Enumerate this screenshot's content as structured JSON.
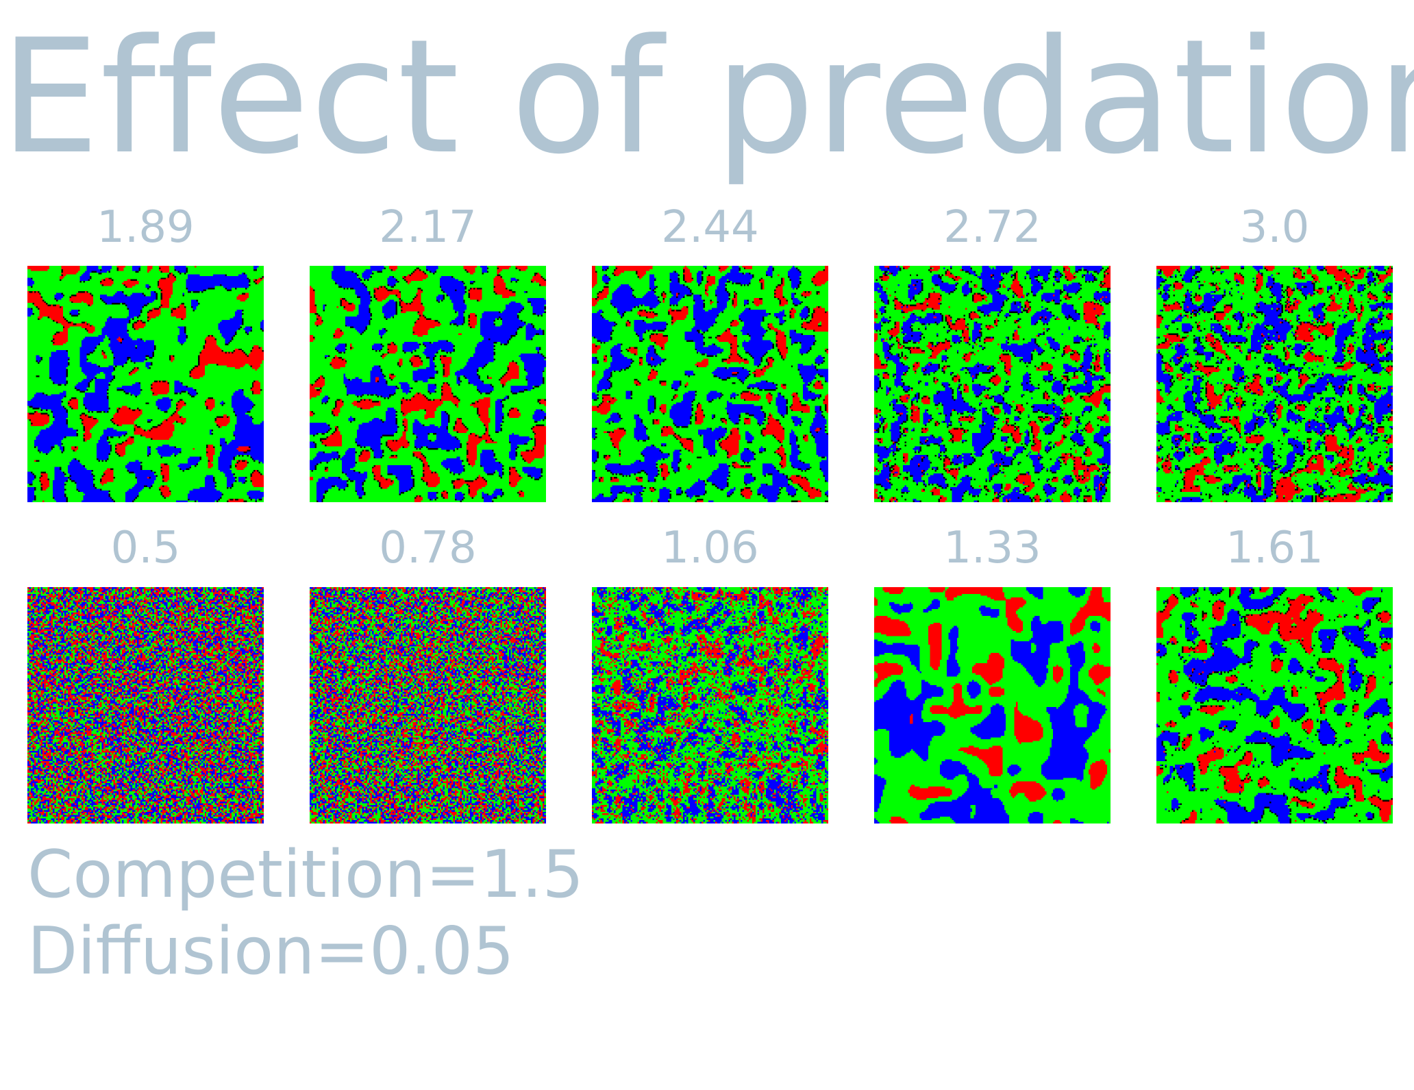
{
  "title": "Effect of predation",
  "panels_top": [
    {
      "label": "1.89",
      "predation": 1.89
    },
    {
      "label": "2.17",
      "predation": 2.17
    },
    {
      "label": "2.44",
      "predation": 2.44
    },
    {
      "label": "2.72",
      "predation": 2.72
    },
    {
      "label": "3.0",
      "predation": 3.0
    }
  ],
  "panels_bottom": [
    {
      "label": "0.5",
      "predation": 0.5
    },
    {
      "label": "0.78",
      "predation": 0.78
    },
    {
      "label": "1.06",
      "predation": 1.06
    },
    {
      "label": "1.33",
      "predation": 1.33
    },
    {
      "label": "1.61",
      "predation": 1.61
    }
  ],
  "params": {
    "competition": "Competition=1.5",
    "diffusion": "Diffusion=0.05"
  },
  "colors": {
    "text": "#b0c4d2",
    "species": [
      "#ff0000",
      "#00ff00",
      "#0000ff"
    ],
    "border": "#000000"
  }
}
